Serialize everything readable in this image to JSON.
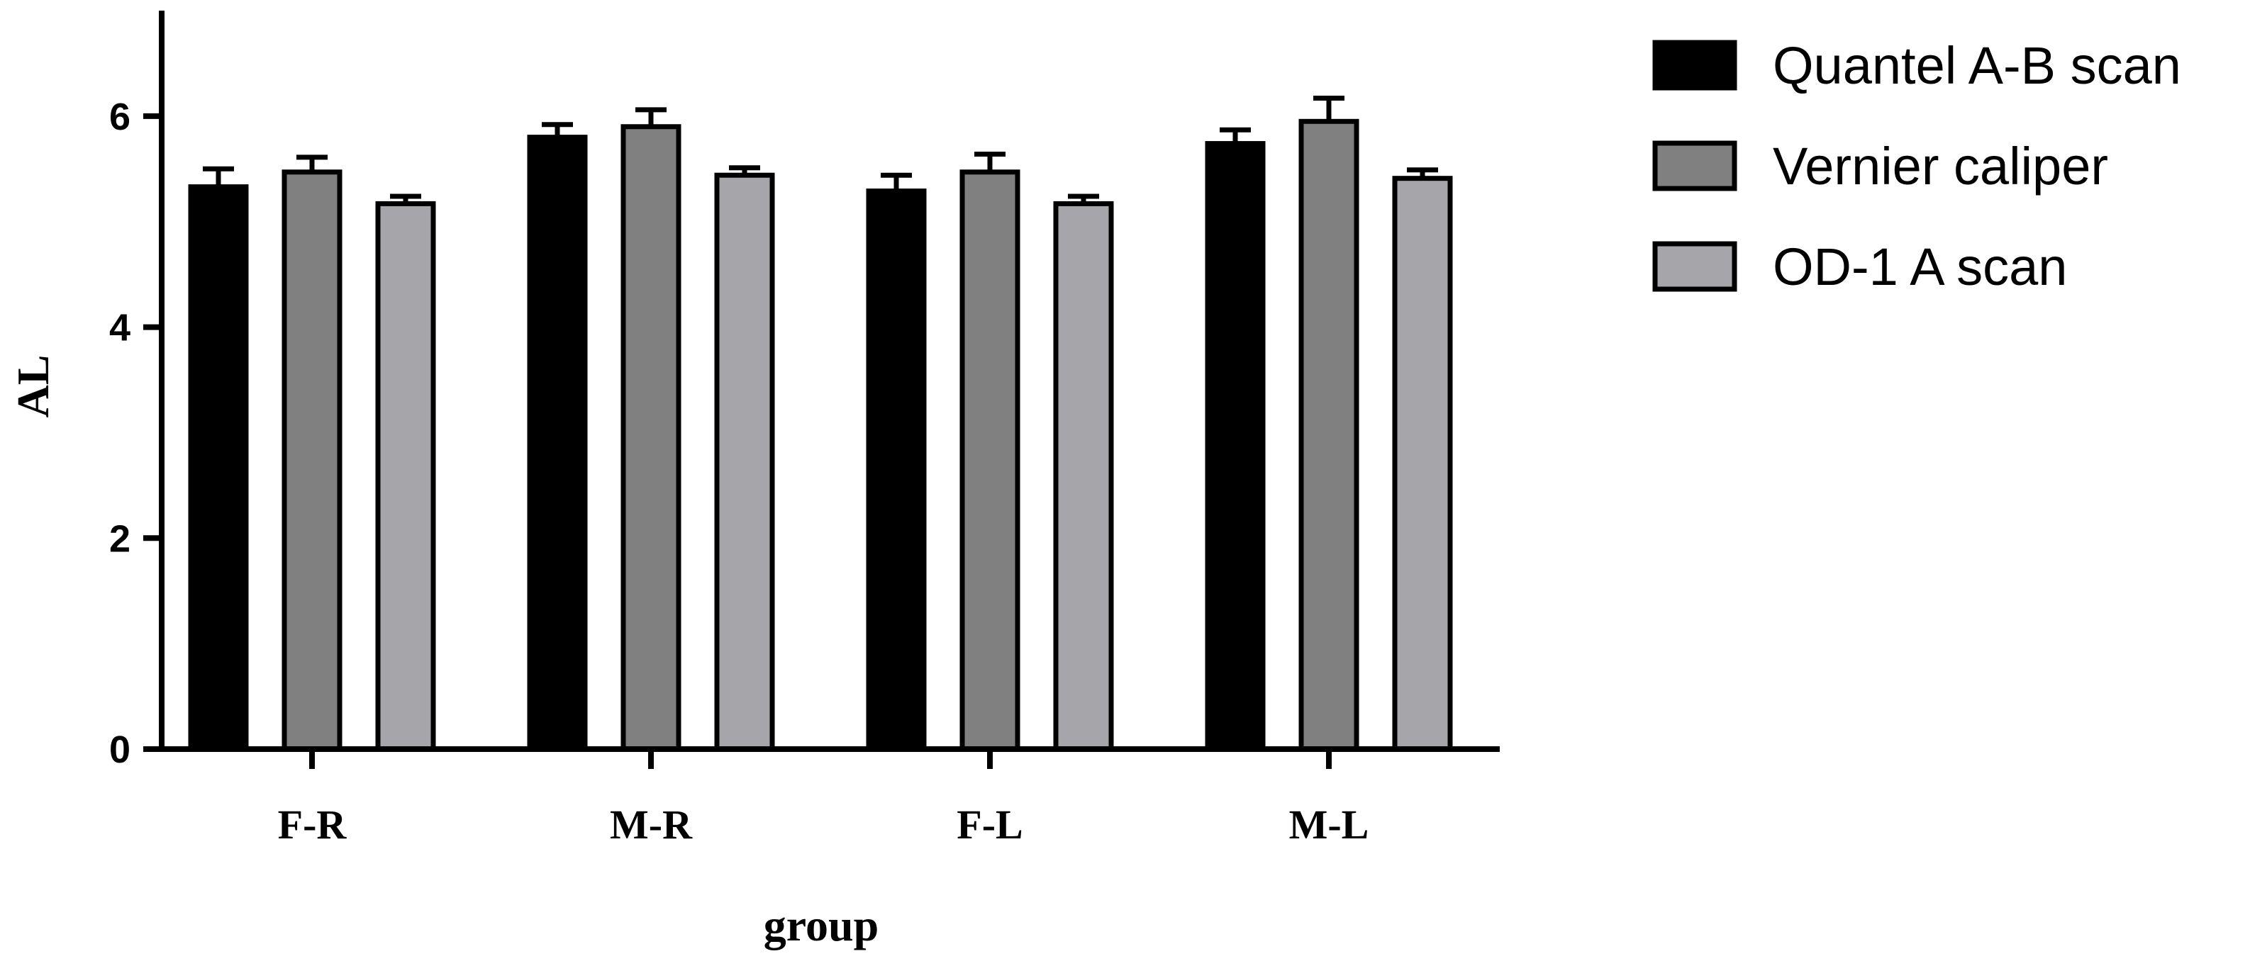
{
  "chart_data": {
    "type": "bar",
    "title": "",
    "xlabel": "group",
    "ylabel": "AL",
    "ylim": [
      0,
      7
    ],
    "yticks": [
      0,
      2,
      4,
      6
    ],
    "grid": false,
    "legend_position": "top-right",
    "categories": [
      "F-R",
      "M-R",
      "F-L",
      "M-L"
    ],
    "series": [
      {
        "name": "Quantel A-B scan",
        "color": "#000000",
        "values": [
          5.33,
          5.8,
          5.29,
          5.74
        ],
        "errors": [
          0.17,
          0.12,
          0.15,
          0.13
        ]
      },
      {
        "name": "Vernier caliper",
        "color": "#808080",
        "values": [
          5.47,
          5.9,
          5.47,
          5.95
        ],
        "errors": [
          0.14,
          0.16,
          0.17,
          0.22
        ]
      },
      {
        "name": "OD-1 A scan",
        "color": "#a6a6aa",
        "values": [
          5.17,
          5.44,
          5.17,
          5.41
        ],
        "errors": [
          0.07,
          0.07,
          0.07,
          0.08
        ]
      }
    ]
  }
}
